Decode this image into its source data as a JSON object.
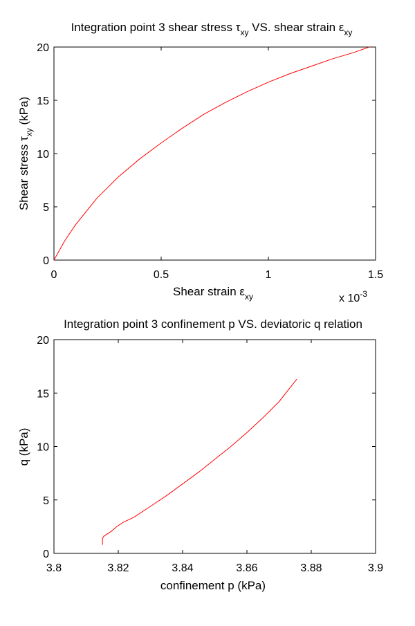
{
  "chart_data": [
    {
      "type": "line",
      "title": {
        "prefix": "Integration point 3 shear stress ",
        "sym1": "τ",
        "sub1": "xy",
        "middle": " VS. shear strain ",
        "sym2": "ε",
        "sub2": "xy"
      },
      "xlabel": {
        "prefix": "Shear strain ",
        "sym": "ε",
        "sub": "xy"
      },
      "ylabel": {
        "prefix": "Shear stress ",
        "sym": "τ",
        "sub": "xy",
        "suffix": " (kPa)"
      },
      "x_multiplier": {
        "base": "x 10",
        "exp": "-3"
      },
      "xlim": [
        0,
        1.5
      ],
      "ylim": [
        0,
        20
      ],
      "xticks": [
        "0",
        "0.5",
        "1",
        "1.5"
      ],
      "yticks": [
        "0",
        "5",
        "10",
        "15",
        "20"
      ],
      "grid": false,
      "series": [
        {
          "color": "#ff0000",
          "x": [
            0,
            0.05,
            0.1,
            0.2,
            0.3,
            0.4,
            0.5,
            0.6,
            0.7,
            0.8,
            0.9,
            1.0,
            1.1,
            1.2,
            1.3,
            1.4,
            1.47
          ],
          "y": [
            0,
            1.8,
            3.3,
            5.8,
            7.8,
            9.5,
            11.0,
            12.4,
            13.7,
            14.8,
            15.8,
            16.7,
            17.5,
            18.2,
            18.9,
            19.5,
            20.0
          ]
        }
      ]
    },
    {
      "type": "line",
      "title": {
        "text": "Integration point 3 confinement p VS. deviatoric q relation"
      },
      "xlabel": {
        "text": "confinement p (kPa)"
      },
      "ylabel": {
        "text": "q (kPa)"
      },
      "xlim": [
        3.8,
        3.9
      ],
      "ylim": [
        0,
        20
      ],
      "xticks": [
        "3.8",
        "3.82",
        "3.84",
        "3.86",
        "3.88",
        "3.9"
      ],
      "yticks": [
        "0",
        "5",
        "10",
        "15",
        "20"
      ],
      "grid": false,
      "series": [
        {
          "color": "#ff0000",
          "x": [
            3.8151,
            3.8151,
            3.8155,
            3.818,
            3.8195,
            3.8215,
            3.825,
            3.83,
            3.835,
            3.84,
            3.845,
            3.85,
            3.855,
            3.86,
            3.865,
            3.87,
            3.8755
          ],
          "y": [
            0.8,
            1.4,
            1.6,
            2.1,
            2.5,
            2.9,
            3.4,
            4.4,
            5.4,
            6.5,
            7.6,
            8.8,
            10.0,
            11.3,
            12.7,
            14.2,
            16.3
          ]
        }
      ]
    }
  ]
}
